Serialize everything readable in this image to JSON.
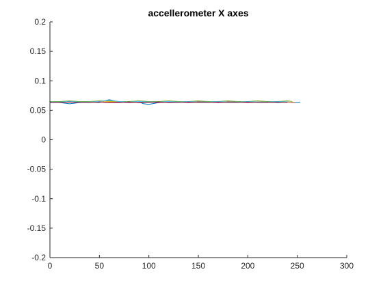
{
  "chart_data": {
    "type": "line",
    "title": "accellerometer X axes",
    "xlabel": "",
    "ylabel": "",
    "xlim": [
      0,
      300
    ],
    "ylim": [
      -0.2,
      0.2
    ],
    "x_ticks": [
      0,
      50,
      100,
      150,
      200,
      250,
      300
    ],
    "y_ticks": [
      -0.2,
      -0.15,
      -0.1,
      -0.05,
      0,
      0.05,
      0.1,
      0.15,
      0.2
    ],
    "x_tick_labels": [
      "0",
      "50",
      "100",
      "150",
      "200",
      "250",
      "300"
    ],
    "y_tick_labels": [
      "-0.2",
      "-0.15",
      "-0.1",
      "-0.05",
      "0",
      "0.05",
      "0.1",
      "0.15",
      "0.2"
    ],
    "grid": false,
    "legend": "none",
    "series": [
      {
        "color": "#0072bd",
        "x": [
          0,
          10,
          20,
          30,
          40,
          50,
          55,
          60,
          70,
          80,
          90,
          95,
          100,
          110,
          120,
          130,
          140,
          150,
          160,
          170,
          180,
          190,
          200,
          210,
          220,
          230,
          240,
          250,
          253
        ],
        "y": [
          0.064,
          0.063,
          0.061,
          0.063,
          0.064,
          0.063,
          0.066,
          0.068,
          0.064,
          0.063,
          0.064,
          0.061,
          0.06,
          0.063,
          0.064,
          0.064,
          0.063,
          0.064,
          0.064,
          0.063,
          0.064,
          0.064,
          0.063,
          0.064,
          0.064,
          0.063,
          0.064,
          0.063,
          0.064
        ]
      },
      {
        "color": "#d95319",
        "x": [
          0,
          10,
          20,
          30,
          40,
          50,
          60,
          70,
          80,
          90,
          100,
          110,
          120,
          130,
          140,
          150,
          160,
          170,
          180,
          190,
          200,
          210,
          220,
          230,
          240,
          248
        ],
        "y": [
          0.065,
          0.065,
          0.064,
          0.065,
          0.064,
          0.065,
          0.064,
          0.065,
          0.065,
          0.064,
          0.064,
          0.065,
          0.064,
          0.065,
          0.064,
          0.065,
          0.064,
          0.064,
          0.065,
          0.064,
          0.065,
          0.064,
          0.065,
          0.064,
          0.064,
          0.063
        ]
      },
      {
        "color": "#edb120",
        "x": [
          0,
          10,
          20,
          30,
          40,
          50,
          60,
          70,
          80,
          90,
          100,
          110,
          120,
          130,
          140,
          150,
          160,
          170,
          180,
          190,
          200,
          210,
          220,
          230,
          240
        ],
        "y": [
          0.064,
          0.064,
          0.065,
          0.064,
          0.063,
          0.064,
          0.065,
          0.064,
          0.064,
          0.063,
          0.064,
          0.064,
          0.065,
          0.064,
          0.064,
          0.063,
          0.064,
          0.065,
          0.064,
          0.064,
          0.063,
          0.064,
          0.064,
          0.065,
          0.064
        ]
      },
      {
        "color": "#7e2f8e",
        "x": [
          0,
          10,
          20,
          30,
          40,
          50,
          60,
          70,
          80,
          90,
          100,
          110,
          120,
          130,
          140,
          150,
          160,
          170,
          180,
          190,
          200,
          210,
          220,
          230,
          238
        ],
        "y": [
          0.063,
          0.064,
          0.064,
          0.063,
          0.064,
          0.064,
          0.063,
          0.064,
          0.063,
          0.064,
          0.064,
          0.063,
          0.064,
          0.064,
          0.063,
          0.064,
          0.064,
          0.063,
          0.064,
          0.064,
          0.063,
          0.064,
          0.063,
          0.064,
          0.064
        ]
      },
      {
        "color": "#77ac30",
        "x": [
          0,
          10,
          20,
          30,
          40,
          50,
          60,
          70,
          80,
          90,
          100,
          110,
          120,
          130,
          140,
          150,
          160,
          170,
          180,
          190,
          200,
          210,
          220,
          230,
          240,
          245
        ],
        "y": [
          0.065,
          0.065,
          0.066,
          0.065,
          0.065,
          0.066,
          0.066,
          0.065,
          0.065,
          0.066,
          0.065,
          0.065,
          0.066,
          0.065,
          0.065,
          0.066,
          0.065,
          0.065,
          0.066,
          0.065,
          0.065,
          0.066,
          0.065,
          0.065,
          0.066,
          0.065
        ]
      },
      {
        "color": "#4dbeee",
        "x": [
          0,
          10,
          20,
          30,
          40,
          50,
          60,
          70,
          80,
          90,
          100,
          110,
          120,
          130,
          140,
          150,
          160,
          170,
          180,
          190,
          200,
          210,
          220,
          230,
          240
        ],
        "y": [
          0.064,
          0.064,
          0.065,
          0.064,
          0.064,
          0.065,
          0.067,
          0.065,
          0.064,
          0.065,
          0.064,
          0.064,
          0.065,
          0.064,
          0.065,
          0.064,
          0.064,
          0.065,
          0.064,
          0.064,
          0.065,
          0.064,
          0.064,
          0.065,
          0.064
        ]
      },
      {
        "color": "#a2142f",
        "x": [
          0,
          10,
          20,
          30,
          40,
          50,
          60,
          70,
          80,
          90,
          100,
          110,
          120,
          130,
          140,
          150,
          160,
          170,
          180,
          190,
          200,
          210,
          220,
          230,
          240
        ],
        "y": [
          0.063,
          0.063,
          0.064,
          0.063,
          0.063,
          0.064,
          0.063,
          0.063,
          0.064,
          0.063,
          0.063,
          0.064,
          0.063,
          0.063,
          0.064,
          0.063,
          0.063,
          0.064,
          0.063,
          0.063,
          0.064,
          0.063,
          0.063,
          0.064,
          0.063
        ]
      }
    ]
  }
}
